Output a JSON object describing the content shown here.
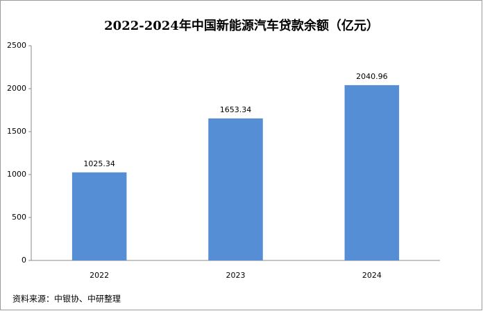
{
  "chart_data": {
    "type": "bar",
    "title": "2022-2024年中国新能源汽车贷款余额（亿元）",
    "categories": [
      "2022",
      "2023",
      "2024"
    ],
    "values": [
      1025.34,
      1653.34,
      2040.96
    ],
    "color": "#558ed5",
    "ylim": [
      0,
      2500
    ],
    "yticks": [
      0,
      500,
      1000,
      1500,
      2000,
      2500
    ],
    "grid": false,
    "source": "资料来源：中银协、中研整理"
  }
}
